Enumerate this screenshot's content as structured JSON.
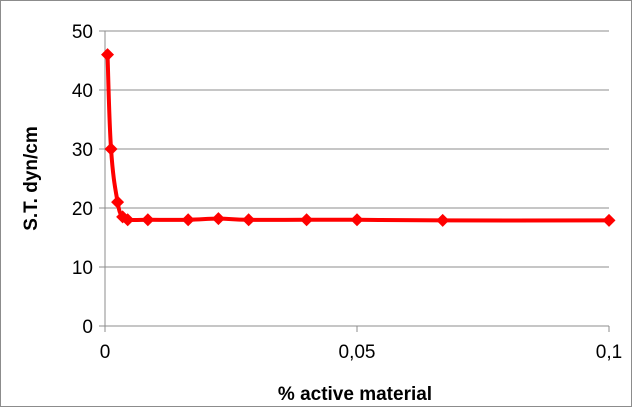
{
  "chart_data": {
    "type": "line",
    "title": "",
    "xlabel": "% active material",
    "ylabel": "S.T. dyn/cm",
    "xlim": [
      0,
      0.1
    ],
    "ylim": [
      0,
      50
    ],
    "xticks": [
      0,
      0.05,
      0.1
    ],
    "xtick_labels": [
      "0",
      "0,05",
      "0,1"
    ],
    "yticks": [
      0,
      10,
      20,
      30,
      40,
      50
    ],
    "ytick_labels": [
      "0",
      "10",
      "20",
      "30",
      "40",
      "50"
    ],
    "grid": "horizontal",
    "legend": "none",
    "colors": {
      "series": "#ff0000",
      "grid": "#8c8c8c",
      "axis": "#8c8c8c"
    },
    "marker": "diamond",
    "series": [
      {
        "x": [
          0.0005,
          0.0012,
          0.0025,
          0.0035,
          0.0045,
          0.0085,
          0.0165,
          0.0225,
          0.0285,
          0.04,
          0.05,
          0.067,
          0.1
        ],
        "values": [
          46,
          30,
          21,
          18.5,
          18,
          18,
          18,
          18.2,
          18,
          18,
          18,
          17.9,
          17.9
        ]
      }
    ]
  }
}
